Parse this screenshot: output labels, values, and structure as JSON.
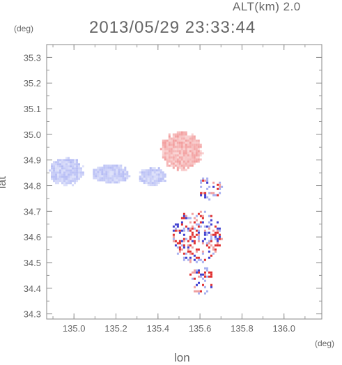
{
  "header": {
    "altitude_label": "ALT(km)  2.0",
    "timestamp": "2013/05/29 23:33:44"
  },
  "axes": {
    "x_unit": "(deg)",
    "y_unit": "(deg)",
    "x_label": "lon",
    "y_label": "lat"
  },
  "chart_data": {
    "type": "heatmap",
    "xlabel": "lon",
    "ylabel": "lat",
    "xlim": [
      134.87,
      136.18
    ],
    "ylim": [
      34.28,
      35.35
    ],
    "x_ticks": [
      "135.0",
      "135.2",
      "135.4",
      "135.6",
      "135.8",
      "136.0"
    ],
    "y_ticks": [
      "34.3",
      "34.4",
      "34.5",
      "34.6",
      "34.7",
      "34.8",
      "34.9",
      "35.0",
      "35.1",
      "35.2",
      "35.3"
    ],
    "colors": {
      "positive": "#f0a0a0",
      "negative": "#a8b0f0",
      "strong_positive": "#e03030",
      "strong_negative": "#4040d0"
    },
    "echo_regions": [
      {
        "sign": "negative",
        "lon": [
          134.87,
          135.05
        ],
        "lat": [
          34.8,
          34.92
        ]
      },
      {
        "sign": "negative",
        "lon": [
          135.07,
          135.27
        ],
        "lat": [
          34.81,
          34.89
        ]
      },
      {
        "sign": "negative",
        "lon": [
          135.3,
          135.44
        ],
        "lat": [
          34.8,
          34.88
        ]
      },
      {
        "sign": "positive",
        "lon": [
          135.4,
          135.62
        ],
        "lat": [
          34.86,
          35.02
        ]
      },
      {
        "sign": "mixed",
        "lon": [
          135.58,
          135.7
        ],
        "lat": [
          34.75,
          34.84
        ]
      },
      {
        "sign": "mixed",
        "lon": [
          135.46,
          135.7
        ],
        "lat": [
          34.5,
          34.71
        ]
      },
      {
        "sign": "mixed",
        "lon": [
          135.54,
          135.66
        ],
        "lat": [
          34.38,
          34.49
        ]
      }
    ]
  }
}
